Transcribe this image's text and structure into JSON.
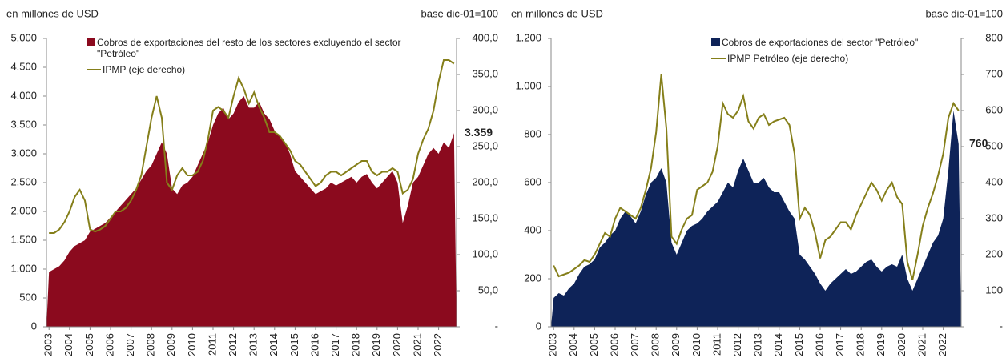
{
  "chart_data": [
    {
      "type": "area",
      "ylabel": "en millones de USD",
      "y2label": "base dic-01=100",
      "categories": [
        "2003",
        null,
        null,
        null,
        "2004",
        null,
        null,
        null,
        "2005",
        null,
        null,
        null,
        "2006",
        null,
        null,
        null,
        "2007",
        null,
        null,
        null,
        "2008",
        null,
        null,
        null,
        "2009",
        null,
        null,
        null,
        "2010",
        null,
        null,
        null,
        "2011",
        null,
        null,
        null,
        "2012",
        null,
        null,
        null,
        "2013",
        null,
        null,
        null,
        "2014",
        null,
        null,
        null,
        "2015",
        null,
        null,
        null,
        "2016",
        null,
        null,
        null,
        "2017",
        null,
        null,
        null,
        "2018",
        null,
        null,
        null,
        "2019",
        null,
        null,
        null,
        "2020",
        null,
        null,
        null,
        "2021",
        null,
        null,
        null,
        "2022",
        null,
        null,
        null
      ],
      "series": [
        {
          "name": "Cobros de exportaciones del resto de los sectores excluyendo el sector \"Petróleo\"",
          "color": "#8b0a1e",
          "type": "area",
          "values": [
            950,
            1000,
            1050,
            1150,
            1300,
            1400,
            1450,
            1500,
            1650,
            1700,
            1750,
            1800,
            1900,
            2000,
            2100,
            2200,
            2300,
            2400,
            2550,
            2700,
            2800,
            3000,
            3200,
            3000,
            2400,
            2300,
            2450,
            2500,
            2600,
            2800,
            3000,
            3200,
            3500,
            3700,
            3800,
            3600,
            3700,
            3900,
            4000,
            3800,
            3800,
            3900,
            3700,
            3600,
            3400,
            3300,
            3200,
            3000,
            2700,
            2600,
            2500,
            2400,
            2300,
            2350,
            2400,
            2500,
            2450,
            2500,
            2550,
            2600,
            2500,
            2600,
            2650,
            2500,
            2400,
            2500,
            2600,
            2700,
            2500,
            1800,
            2100,
            2500,
            2600,
            2800,
            3000,
            3100,
            3000,
            3200,
            3100,
            3359
          ]
        },
        {
          "name": "IPMP (eje derecho)",
          "color": "#857f1a",
          "type": "line",
          "axis": "y2",
          "values": [
            130,
            130,
            135,
            145,
            160,
            180,
            190,
            175,
            135,
            132,
            135,
            140,
            150,
            160,
            160,
            165,
            175,
            190,
            210,
            250,
            290,
            320,
            290,
            200,
            190,
            210,
            220,
            210,
            210,
            215,
            230,
            260,
            300,
            305,
            300,
            290,
            320,
            345,
            330,
            310,
            325,
            305,
            290,
            270,
            270,
            265,
            255,
            245,
            230,
            225,
            215,
            205,
            195,
            200,
            210,
            215,
            215,
            210,
            215,
            220,
            225,
            230,
            230,
            215,
            210,
            215,
            215,
            220,
            215,
            185,
            190,
            205,
            240,
            260,
            275,
            300,
            340,
            370,
            370,
            365
          ]
        }
      ],
      "ylim": [
        0,
        5000
      ],
      "yticks": [
        0,
        {
          "value": 500,
          "label": "500"
        },
        {
          "value": 1000,
          "label": "1.000"
        },
        {
          "value": 1500,
          "label": "1.500"
        },
        {
          "value": 2000,
          "label": "2.000"
        },
        {
          "value": 2500,
          "label": "2.500"
        },
        {
          "value": 3000,
          "label": "3.000"
        },
        {
          "value": 3500,
          "label": "3.500"
        },
        {
          "value": 4000,
          "label": "4.000"
        },
        {
          "value": 4500,
          "label": "4.500"
        },
        {
          "value": 5000,
          "label": "5.000"
        }
      ],
      "y2lim": [
        0,
        400
      ],
      "y2ticks": [
        {
          "value": 0,
          "label": "-"
        },
        {
          "value": 50,
          "label": "50,0"
        },
        {
          "value": 100,
          "label": "100,0"
        },
        {
          "value": 150,
          "label": "150,0"
        },
        {
          "value": 200,
          "label": "200,0"
        },
        {
          "value": 250,
          "label": "250,0"
        },
        {
          "value": 300,
          "label": "300,0"
        },
        {
          "value": 350,
          "label": "350,0"
        },
        {
          "value": 400,
          "label": "400,0"
        }
      ],
      "annotation": {
        "text": "3.359",
        "value": 3359,
        "color": "#c0001e"
      }
    },
    {
      "type": "area",
      "ylabel": "en millones de USD",
      "y2label": "base dic-01=100",
      "categories": [
        "2003",
        null,
        null,
        null,
        "2004",
        null,
        null,
        null,
        "2005",
        null,
        null,
        null,
        "2006",
        null,
        null,
        null,
        "2007",
        null,
        null,
        null,
        "2008",
        null,
        null,
        null,
        "2009",
        null,
        null,
        null,
        "2010",
        null,
        null,
        null,
        "2011",
        null,
        null,
        null,
        "2012",
        null,
        null,
        null,
        "2013",
        null,
        null,
        null,
        "2014",
        null,
        null,
        null,
        "2015",
        null,
        null,
        null,
        "2016",
        null,
        null,
        null,
        "2017",
        null,
        null,
        null,
        "2018",
        null,
        null,
        null,
        "2019",
        null,
        null,
        null,
        "2020",
        null,
        null,
        null,
        "2021",
        null,
        null,
        null,
        "2022",
        null,
        null,
        null
      ],
      "series": [
        {
          "name": "Cobros de exportaciones del sector \"Petróleo\"",
          "color": "#0e2358",
          "type": "area",
          "values": [
            120,
            140,
            130,
            160,
            180,
            220,
            250,
            260,
            280,
            330,
            350,
            380,
            400,
            450,
            480,
            460,
            430,
            480,
            550,
            600,
            620,
            660,
            600,
            350,
            300,
            350,
            400,
            420,
            430,
            450,
            480,
            500,
            520,
            560,
            600,
            580,
            650,
            700,
            650,
            600,
            600,
            620,
            580,
            560,
            560,
            520,
            480,
            450,
            300,
            280,
            250,
            220,
            180,
            150,
            180,
            200,
            220,
            240,
            220,
            230,
            250,
            270,
            280,
            250,
            230,
            250,
            260,
            250,
            300,
            200,
            150,
            200,
            250,
            300,
            350,
            380,
            450,
            650,
            900,
            760
          ]
        },
        {
          "name": "IPMP Petróleo (eje derecho)",
          "color": "#857f1a",
          "type": "line",
          "axis": "y2",
          "values": [
            170,
            140,
            145,
            150,
            160,
            170,
            185,
            180,
            200,
            230,
            260,
            250,
            300,
            330,
            320,
            310,
            300,
            330,
            380,
            440,
            540,
            700,
            550,
            250,
            230,
            270,
            300,
            310,
            380,
            390,
            400,
            430,
            500,
            620,
            590,
            580,
            600,
            640,
            570,
            550,
            580,
            590,
            560,
            570,
            575,
            580,
            560,
            480,
            300,
            330,
            310,
            260,
            190,
            240,
            250,
            270,
            290,
            290,
            270,
            310,
            340,
            370,
            400,
            380,
            350,
            380,
            400,
            360,
            340,
            180,
            130,
            200,
            280,
            330,
            370,
            420,
            480,
            580,
            620,
            600
          ]
        }
      ],
      "ylim": [
        0,
        1200
      ],
      "yticks": [
        0,
        200,
        400,
        600,
        800,
        {
          "value": 1000,
          "label": "1.000"
        },
        {
          "value": 1200,
          "label": "1.200"
        }
      ],
      "y2lim": [
        0,
        800
      ],
      "y2ticks": [
        {
          "value": 0,
          "label": "-"
        },
        100,
        200,
        300,
        400,
        500,
        600,
        700,
        800
      ],
      "annotation": {
        "text": "760",
        "value": 760,
        "color": "#0e2358"
      }
    }
  ]
}
